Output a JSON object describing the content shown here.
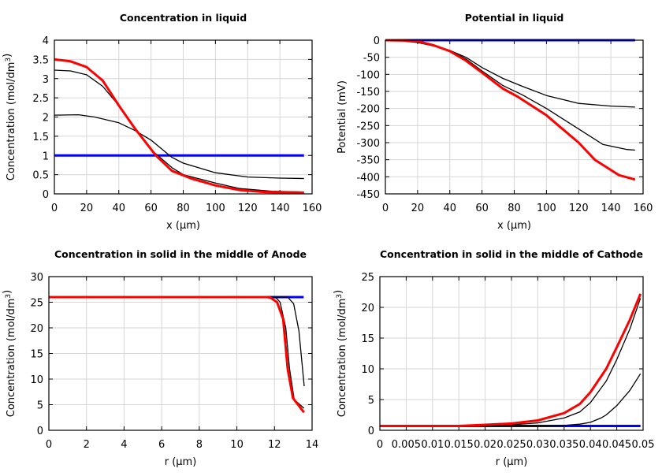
{
  "chart_data": [
    {
      "type": "line",
      "title": "Concentration in liquid",
      "xlabel": "x (µm)",
      "ylabel": "Concentration (mol/dm³)",
      "xlim": [
        0,
        160
      ],
      "ylim": [
        0,
        4
      ],
      "xticks": [
        "0",
        "20",
        "40",
        "60",
        "80",
        "100",
        "120",
        "140",
        "160"
      ],
      "yticks": [
        "0",
        "0.5",
        "1",
        "1.5",
        "2",
        "2.5",
        "3",
        "3.5",
        "4"
      ],
      "grid": true,
      "series": [
        {
          "color": "#0000ff",
          "x": [
            0,
            155
          ],
          "y": [
            1,
            1
          ]
        },
        {
          "color": "#000000",
          "x": [
            0,
            15,
            25,
            40,
            50,
            60,
            73,
            80,
            100,
            120,
            140,
            155
          ],
          "y": [
            2.05,
            2.06,
            2.0,
            1.85,
            1.65,
            1.4,
            0.95,
            0.8,
            0.55,
            0.44,
            0.41,
            0.4
          ]
        },
        {
          "color": "#000000",
          "x": [
            0,
            10,
            20,
            30,
            40,
            50,
            60,
            73,
            80,
            100,
            115,
            135,
            155
          ],
          "y": [
            3.22,
            3.2,
            3.1,
            2.8,
            2.3,
            1.7,
            1.15,
            0.68,
            0.5,
            0.28,
            0.14,
            0.07,
            0.05
          ]
        },
        {
          "color": "#ff0000",
          "x": [
            0,
            10,
            20,
            30,
            40,
            50,
            63,
            73,
            85,
            100,
            115,
            130,
            155
          ],
          "y": [
            3.5,
            3.45,
            3.3,
            2.95,
            2.3,
            1.7,
            1.0,
            0.6,
            0.4,
            0.22,
            0.1,
            0.05,
            0.03
          ]
        }
      ]
    },
    {
      "type": "line",
      "title": "Potential in liquid",
      "xlabel": "x (µm)",
      "ylabel": "Potential (mV)",
      "xlim": [
        0,
        160
      ],
      "ylim": [
        -450,
        0
      ],
      "xticks": [
        "0",
        "20",
        "40",
        "60",
        "80",
        "100",
        "120",
        "140",
        "160"
      ],
      "yticks": [
        "-450",
        "-400",
        "-350",
        "-300",
        "-250",
        "-200",
        "-150",
        "-100",
        "-50",
        "0"
      ],
      "grid": true,
      "series": [
        {
          "color": "#0000ff",
          "x": [
            0,
            155
          ],
          "y": [
            0,
            0
          ]
        },
        {
          "color": "#000000",
          "x": [
            0,
            10,
            20,
            30,
            40,
            50,
            60,
            73,
            85,
            100,
            120,
            140,
            155
          ],
          "y": [
            0,
            -2,
            -7,
            -17,
            -30,
            -50,
            -80,
            -112,
            -135,
            -162,
            -185,
            -193,
            -196
          ]
        },
        {
          "color": "#000000",
          "x": [
            0,
            10,
            20,
            30,
            40,
            50,
            60,
            73,
            85,
            100,
            120,
            135,
            150,
            155
          ],
          "y": [
            0,
            -1,
            -5,
            -15,
            -30,
            -55,
            -90,
            -133,
            -160,
            -200,
            -260,
            -305,
            -320,
            -322
          ]
        },
        {
          "color": "#ff0000",
          "x": [
            0,
            10,
            20,
            30,
            40,
            50,
            60,
            73,
            82,
            100,
            110,
            120,
            130,
            145,
            155
          ],
          "y": [
            0,
            -1,
            -3,
            -15,
            -32,
            -60,
            -95,
            -142,
            -165,
            -220,
            -260,
            -300,
            -350,
            -395,
            -408
          ]
        }
      ]
    },
    {
      "type": "line",
      "title": "Concentration in solid in the middle of Anode",
      "xlabel": "r (µm)",
      "ylabel": "Concentration (mol/dm³)",
      "xlim": [
        0,
        14
      ],
      "ylim": [
        0,
        30
      ],
      "xticks": [
        "0",
        "2",
        "4",
        "6",
        "8",
        "10",
        "12",
        "14"
      ],
      "yticks": [
        "0",
        "5",
        "10",
        "15",
        "20",
        "25",
        "30"
      ],
      "grid": true,
      "series": [
        {
          "color": "#0000ff",
          "x": [
            0,
            13.55
          ],
          "y": [
            26,
            26
          ]
        },
        {
          "color": "#000000",
          "x": [
            0,
            12.7,
            13.02,
            13.3,
            13.58
          ],
          "y": [
            26,
            26,
            24.7,
            19.4,
            8.6
          ]
        },
        {
          "color": "#000000",
          "x": [
            0,
            11.9,
            12.1,
            12.3,
            12.6,
            12.8,
            13.05,
            13.57
          ],
          "y": [
            26,
            26,
            25.8,
            25,
            20,
            12,
            6,
            4.3
          ]
        },
        {
          "color": "#ff0000",
          "x": [
            0,
            11.6,
            11.78,
            12.14,
            12.46,
            12.7,
            12.98,
            13.57
          ],
          "y": [
            26,
            26,
            25.9,
            25,
            21.7,
            12,
            6.3,
            3.5
          ]
        }
      ]
    },
    {
      "type": "line",
      "title": "Concentration in solid in the middle of Cathode",
      "xlabel": "r (µm)",
      "ylabel": "Concentration (mol/dm³)",
      "xlim": [
        0,
        0.05
      ],
      "ylim": [
        0,
        25
      ],
      "xticks": [
        "0",
        "0.005",
        "0.01",
        "0.015",
        "0.02",
        "0.025",
        "0.03",
        "0.035",
        "0.04",
        "0.045",
        "0.05"
      ],
      "yticks": [
        "0",
        "5",
        "10",
        "15",
        "20",
        "25"
      ],
      "grid": true,
      "series": [
        {
          "color": "#0000ff",
          "x": [
            0,
            0.0495
          ],
          "y": [
            0.7,
            0.7
          ]
        },
        {
          "color": "#000000",
          "x": [
            0,
            0.03,
            0.035,
            0.038,
            0.04,
            0.042,
            0.043,
            0.045,
            0.0475,
            0.0495
          ],
          "y": [
            0.7,
            0.7,
            0.8,
            1.0,
            1.3,
            2.0,
            2.5,
            4,
            6.5,
            9.2
          ]
        },
        {
          "color": "#000000",
          "x": [
            0,
            0.02,
            0.025,
            0.03,
            0.035,
            0.038,
            0.04,
            0.043,
            0.045,
            0.0475,
            0.0495
          ],
          "y": [
            0.7,
            0.7,
            0.9,
            1.2,
            2.0,
            3.0,
            4.5,
            8,
            11.5,
            16.5,
            21.5
          ]
        },
        {
          "color": "#ff0000",
          "x": [
            0,
            0.015,
            0.02,
            0.025,
            0.03,
            0.035,
            0.038,
            0.04,
            0.043,
            0.045,
            0.0475,
            0.0495
          ],
          "y": [
            0.7,
            0.7,
            0.9,
            1.1,
            1.6,
            2.8,
            4.3,
            6.2,
            10,
            13.5,
            18,
            22.2
          ]
        }
      ]
    }
  ]
}
